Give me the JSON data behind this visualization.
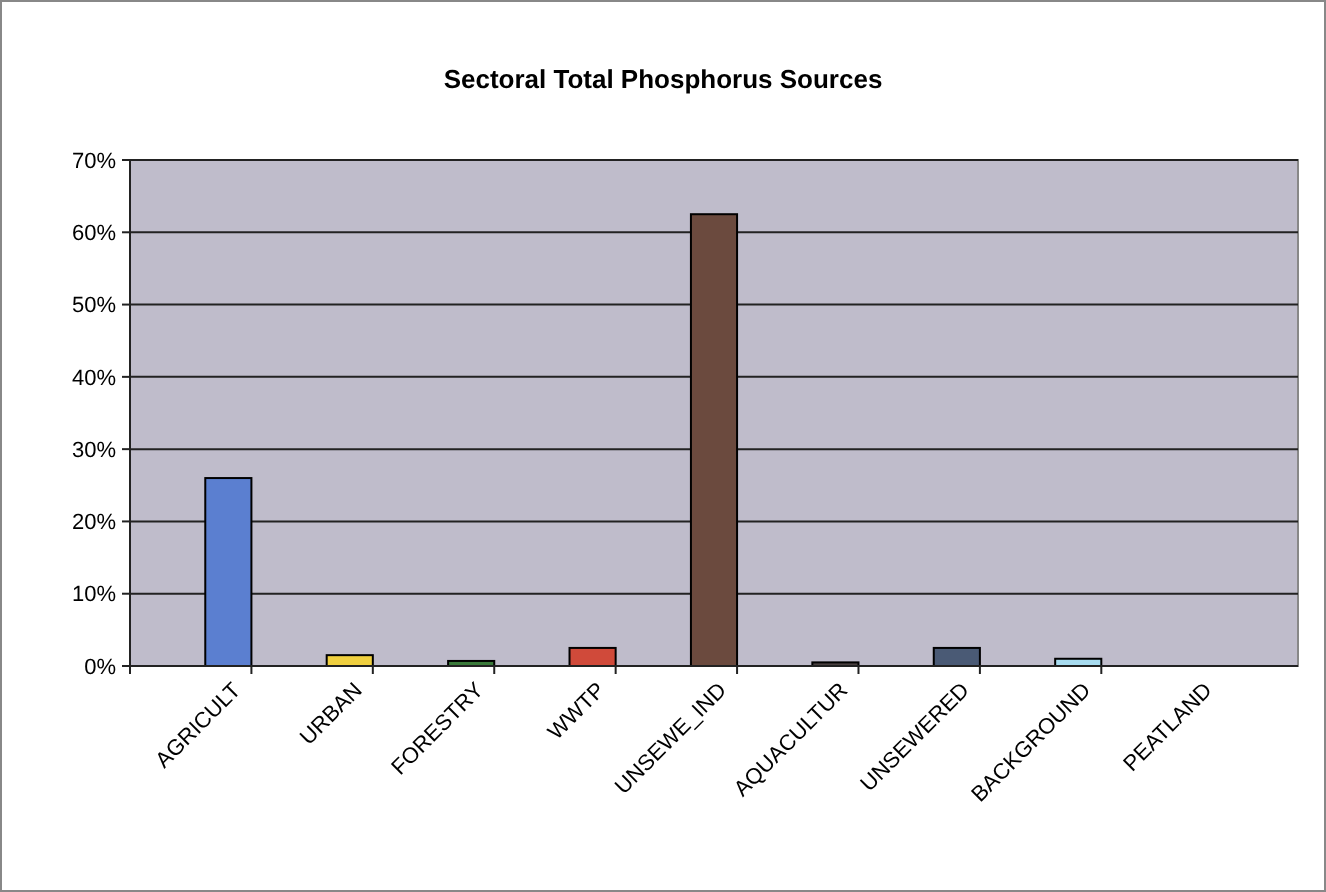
{
  "chart_data": {
    "type": "bar",
    "title": "Sectoral Total Phosphorus Sources",
    "categories": [
      "AGRICULT",
      "URBAN",
      "FORESTRY",
      "WWTP",
      "UNSEWE_IND",
      "AQUACULTUR",
      "UNSEWERED",
      "BACKGROUND",
      "PEATLAND"
    ],
    "values": [
      26,
      1.5,
      0.7,
      2.5,
      62.5,
      0.5,
      2.5,
      1,
      0
    ],
    "colors": [
      "#5b7fd0",
      "#f0d040",
      "#3a7a3a",
      "#d04a3a",
      "#6b4a3e",
      "#4a4040",
      "#4a5a75",
      "#a8dcf0",
      "#808080"
    ],
    "ylim": [
      0,
      70
    ],
    "yticks": [
      {
        "value": 0,
        "label": "0%"
      },
      {
        "value": 10,
        "label": "10%"
      },
      {
        "value": 20,
        "label": "20%"
      },
      {
        "value": 30,
        "label": "30%"
      },
      {
        "value": 40,
        "label": "40%"
      },
      {
        "value": 50,
        "label": "50%"
      },
      {
        "value": 60,
        "label": "60%"
      },
      {
        "value": 70,
        "label": "70%"
      }
    ],
    "grid": "y"
  }
}
